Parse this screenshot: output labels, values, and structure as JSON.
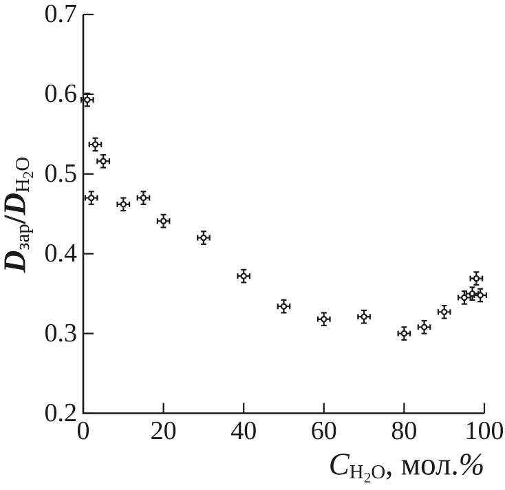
{
  "figure": {
    "background": "#ffffff",
    "ink_color": "#1a1a1a"
  },
  "chart_data": {
    "type": "scatter",
    "title": "",
    "xlabel": "C_{H2O}, мол.%",
    "ylabel": "D_{зар}/D_{H2O}",
    "xlabel_segments": [
      {
        "t": "C",
        "i": true
      },
      {
        "t": "H",
        "l": 1
      },
      {
        "t": "2",
        "l": 2
      },
      {
        "t": "O",
        "l": 1
      },
      {
        "t": ", мол."
      },
      {
        "t": "%",
        "i": true
      }
    ],
    "ylabel_segments": [
      {
        "t": "D",
        "i": true,
        "b": true
      },
      {
        "t": "зар",
        "l": 1
      },
      {
        "t": "/",
        "b": true
      },
      {
        "t": "D",
        "i": true,
        "b": true
      },
      {
        "t": "H",
        "l": 1
      },
      {
        "t": "2",
        "l": 2
      },
      {
        "t": "O",
        "l": 1
      }
    ],
    "xlim": [
      0,
      100
    ],
    "ylim": [
      0.2,
      0.7
    ],
    "xticks": [
      0,
      20,
      40,
      60,
      80,
      100
    ],
    "xtick_labels": [
      "0",
      "20",
      "40",
      "60",
      "80",
      "100"
    ],
    "yticks": [
      0.2,
      0.3,
      0.4,
      0.5,
      0.6,
      0.7
    ],
    "ytick_labels": [
      "0.2",
      "0.3",
      "0.4",
      "0.5",
      "0.6",
      "0.7"
    ],
    "grid": false,
    "legend": null,
    "marker": "open-circle-with-cross-error-bars",
    "x_error": 1.5,
    "y_error": 0.008,
    "points": [
      [
        1,
        0.593
      ],
      [
        2,
        0.47
      ],
      [
        3,
        0.537
      ],
      [
        5,
        0.516
      ],
      [
        10,
        0.462
      ],
      [
        15,
        0.47
      ],
      [
        20,
        0.441
      ],
      [
        30,
        0.42
      ],
      [
        40,
        0.372
      ],
      [
        50,
        0.334
      ],
      [
        60,
        0.318
      ],
      [
        70,
        0.321
      ],
      [
        80,
        0.3
      ],
      [
        85,
        0.308
      ],
      [
        90,
        0.327
      ],
      [
        95,
        0.345
      ],
      [
        97,
        0.35
      ],
      [
        98,
        0.369
      ],
      [
        99,
        0.348
      ]
    ]
  }
}
